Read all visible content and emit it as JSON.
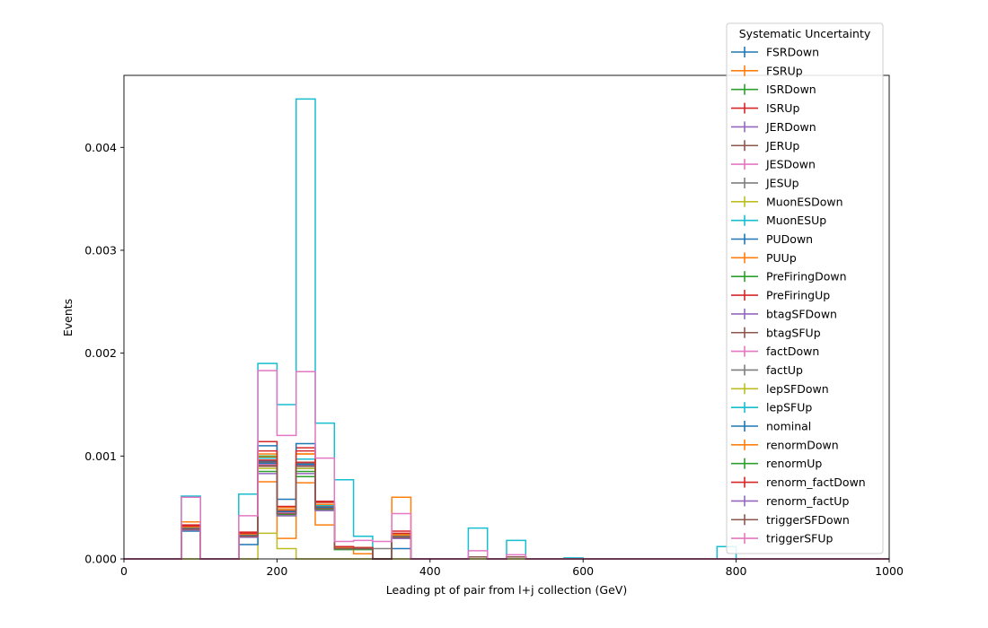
{
  "chart_data": {
    "type": "histogram",
    "xlabel": "Leading pt of pair from l+j collection (GeV)",
    "ylabel": "Events",
    "xlim": [
      0,
      1000
    ],
    "ylim": [
      0,
      0.0047
    ],
    "x_ticks": [
      "0",
      "200",
      "400",
      "600",
      "800",
      "1000"
    ],
    "y_ticks": [
      "0.000",
      "0.001",
      "0.002",
      "0.003",
      "0.004"
    ],
    "grid": false,
    "legend_title": "Systematic Uncertainty",
    "legend_position": "top-right",
    "bin_edges": [
      0,
      25,
      50,
      75,
      100,
      125,
      150,
      175,
      200,
      225,
      250,
      275,
      300,
      325,
      350,
      375,
      400,
      425,
      450,
      475,
      500,
      525,
      550,
      575,
      600,
      625,
      650,
      675,
      700,
      725,
      750,
      775,
      800,
      825,
      850,
      875,
      900,
      925,
      950,
      975,
      1000
    ],
    "series": [
      {
        "name": "FSRDown",
        "color": "#1f77b4",
        "values": [
          0,
          0,
          0,
          0.00028,
          0,
          0,
          0.00022,
          0.00095,
          0.00045,
          0.00088,
          0.0005,
          0.0001,
          0.0001,
          0,
          0.0002,
          0,
          0,
          0,
          2e-05,
          0,
          2e-05,
          0,
          0,
          0,
          0,
          0,
          0,
          0,
          0,
          0,
          0,
          0,
          0,
          0,
          0,
          0,
          0,
          0,
          0,
          0
        ]
      },
      {
        "name": "FSRUp",
        "color": "#ff7f0e",
        "values": [
          0,
          0,
          0,
          0.00036,
          0,
          0,
          0.00025,
          0.00075,
          0.0002,
          0.00074,
          0.00033,
          0.00012,
          5e-05,
          0,
          0.0006,
          0,
          0,
          0,
          2e-05,
          0,
          2e-05,
          0,
          0,
          0,
          0,
          0,
          0,
          0,
          0,
          0,
          0,
          0,
          0,
          0,
          0,
          0,
          0,
          0,
          0,
          0
        ]
      },
      {
        "name": "ISRDown",
        "color": "#2ca02c",
        "values": [
          0,
          0,
          0,
          0.0003,
          0,
          0,
          0.00022,
          0.001,
          0.00042,
          0.0008,
          0.00053,
          9e-05,
          9e-05,
          0,
          0.00022,
          0,
          0,
          0,
          2e-05,
          0,
          2e-05,
          0,
          0,
          0,
          0,
          0,
          0,
          0,
          0,
          0,
          0,
          0,
          0,
          0,
          0,
          0,
          0,
          0,
          0,
          0
        ]
      },
      {
        "name": "ISRUp",
        "color": "#d62728",
        "values": [
          0,
          0,
          0,
          0.00033,
          0,
          0,
          0.00026,
          0.00114,
          0.0005,
          0.00108,
          0.00056,
          0.00011,
          0.00011,
          0,
          0.00027,
          0,
          0,
          0,
          2e-05,
          0,
          2e-05,
          0,
          0,
          0,
          0,
          0,
          0,
          0,
          0,
          0,
          0,
          0,
          0,
          0,
          0,
          0,
          0,
          0,
          0,
          0
        ]
      },
      {
        "name": "JERDown",
        "color": "#9467bd",
        "values": [
          0,
          0,
          0,
          0.0003,
          0,
          0,
          0.00023,
          0.00092,
          0.00046,
          0.00093,
          0.0005,
          0.0001,
          0.0001,
          0,
          0.00022,
          0,
          0,
          0,
          2e-05,
          0,
          2e-05,
          0,
          0,
          0,
          0,
          0,
          0,
          0,
          0,
          0,
          0,
          0,
          0,
          0,
          0,
          0,
          0,
          0,
          0,
          0
        ]
      },
      {
        "name": "JERUp",
        "color": "#8c564b",
        "values": [
          0,
          0,
          0,
          0.00029,
          0,
          0,
          0.00022,
          0.00091,
          0.00045,
          0.0009,
          0.00049,
          0.0001,
          0.0001,
          0,
          0.00021,
          0,
          0,
          0,
          2e-05,
          0,
          2e-05,
          0,
          0,
          0,
          0,
          0,
          0,
          0,
          0,
          0,
          0,
          0,
          0,
          0,
          0,
          0,
          0,
          0,
          0,
          0
        ]
      },
      {
        "name": "JESDown",
        "color": "#e377c2",
        "values": [
          0,
          0,
          0,
          0.0003,
          0,
          0,
          0.00023,
          0.00093,
          0.00046,
          0.00094,
          0.0005,
          0.0001,
          0.0001,
          0,
          0.00022,
          0,
          0,
          0,
          2e-05,
          0,
          2e-05,
          0,
          0,
          0,
          0,
          0,
          0,
          0,
          0,
          0,
          0,
          0,
          0,
          0,
          0,
          0,
          0,
          0,
          0,
          0
        ]
      },
      {
        "name": "JESUp",
        "color": "#7f7f7f",
        "values": [
          0,
          0,
          0,
          0.00029,
          0,
          0,
          0.00022,
          0.00092,
          0.00044,
          0.0009,
          0.00049,
          0.0001,
          0.0001,
          0.0001,
          0.00021,
          0,
          0,
          0,
          2e-05,
          0,
          2e-05,
          0,
          0,
          0,
          0,
          0,
          0,
          0,
          0,
          0,
          0,
          0,
          0,
          0,
          0,
          0,
          0,
          0,
          0,
          0
        ]
      },
      {
        "name": "MuonESDown",
        "color": "#bcbd22",
        "values": [
          0,
          0,
          0,
          0,
          0,
          0,
          0,
          0.00025,
          0.0001,
          0,
          0,
          0,
          0,
          0,
          0,
          0,
          0,
          0,
          0,
          0,
          0,
          0,
          0,
          0,
          0,
          0,
          0,
          0,
          0,
          0,
          0,
          0,
          0,
          0,
          0,
          0,
          0,
          0,
          0,
          0
        ]
      },
      {
        "name": "MuonESUp",
        "color": "#17becf",
        "values": [
          0,
          0,
          0,
          0.00061,
          0,
          0,
          0.00063,
          0.0019,
          0.0015,
          0.00447,
          0.00132,
          0.00077,
          0.00022,
          0,
          0.00024,
          0,
          0,
          0,
          0.0003,
          0,
          0.00018,
          0,
          0,
          1e-05,
          0,
          0,
          0,
          0,
          0,
          0,
          0,
          0.00012,
          0,
          0,
          0,
          0,
          0,
          0,
          0,
          0
        ]
      },
      {
        "name": "PUDown",
        "color": "#1f77b4",
        "values": [
          0,
          0,
          0,
          0.00027,
          0,
          0,
          0.00014,
          0.0011,
          0.00058,
          0.00112,
          0.00055,
          0.0001,
          0.0001,
          0,
          0.0001,
          0,
          0,
          0,
          2e-05,
          0,
          2e-05,
          0,
          0,
          0,
          0,
          0,
          0,
          0,
          0,
          0,
          0,
          0,
          0,
          0,
          0,
          0,
          0,
          0,
          0,
          0
        ]
      },
      {
        "name": "PUUp",
        "color": "#ff7f0e",
        "values": [
          0,
          0,
          0,
          0.00031,
          0,
          0,
          0.00024,
          0.00099,
          0.0005,
          0.00102,
          0.00055,
          0.00011,
          0.00011,
          0,
          0.00024,
          0,
          0,
          0,
          2e-05,
          0,
          2e-05,
          0,
          0,
          0,
          0,
          0,
          0,
          0,
          0,
          0,
          0,
          0,
          0,
          0,
          0,
          0,
          0,
          0,
          0,
          0
        ]
      },
      {
        "name": "PreFiringDown",
        "color": "#2ca02c",
        "values": [
          0,
          0,
          0,
          0.00029,
          0,
          0,
          0.00023,
          0.00093,
          0.00045,
          0.00091,
          0.0005,
          0.0001,
          0.0001,
          0,
          0.00022,
          0,
          0,
          0,
          2e-05,
          0,
          2e-05,
          0,
          0,
          0,
          0,
          0,
          0,
          0,
          0,
          0,
          0,
          0,
          0,
          0,
          0,
          0,
          0,
          0,
          0,
          0
        ]
      },
      {
        "name": "PreFiringUp",
        "color": "#d62728",
        "values": [
          0,
          0,
          0,
          0.0003,
          0,
          0,
          0.00024,
          0.00096,
          0.00047,
          0.00094,
          0.00052,
          0.00011,
          0.00011,
          0,
          0.00023,
          0,
          0,
          0,
          2e-05,
          0,
          2e-05,
          0,
          0,
          0,
          0,
          0,
          0,
          0,
          0,
          0,
          0,
          0,
          0,
          0,
          0,
          0,
          0,
          0,
          0,
          0
        ]
      },
      {
        "name": "btagSFDown",
        "color": "#9467bd",
        "values": [
          0,
          0,
          0,
          0.00029,
          0,
          0,
          0.00022,
          0.00092,
          0.00045,
          0.00091,
          0.0005,
          0.0001,
          0.0001,
          0,
          0.00022,
          0,
          0,
          0,
          2e-05,
          0,
          2e-05,
          0,
          0,
          0,
          0,
          0,
          0,
          0,
          0,
          0,
          0,
          0,
          0,
          0,
          0,
          0,
          0,
          0,
          0,
          0
        ]
      },
      {
        "name": "btagSFUp",
        "color": "#8c564b",
        "values": [
          0,
          0,
          0,
          0.0003,
          0,
          0,
          0.00023,
          0.00094,
          0.00046,
          0.00093,
          0.00051,
          0.0001,
          0.0001,
          0,
          0.00022,
          0,
          0,
          0,
          2e-05,
          0,
          2e-05,
          0,
          0,
          0,
          0,
          0,
          0,
          0,
          0,
          0,
          0,
          0,
          0,
          0,
          0,
          0,
          0,
          0,
          0,
          0
        ]
      },
      {
        "name": "factDown",
        "color": "#e377c2",
        "values": [
          0,
          0,
          0,
          0.00029,
          0,
          0,
          0.00022,
          0.00092,
          0.00045,
          0.00092,
          0.0005,
          0.0001,
          0.0001,
          0,
          0.00022,
          0,
          0,
          0,
          2e-05,
          0,
          2e-05,
          0,
          0,
          0,
          0,
          0,
          0,
          0,
          0,
          0,
          0,
          0,
          0,
          0,
          0,
          0,
          0,
          0,
          0,
          0
        ]
      },
      {
        "name": "factUp",
        "color": "#7f7f7f",
        "values": [
          0,
          0,
          0,
          0.0003,
          0,
          0,
          0.00023,
          0.00093,
          0.00046,
          0.00092,
          0.0005,
          0.0001,
          0.0001,
          0,
          0.00022,
          0,
          0,
          0,
          2e-05,
          0,
          2e-05,
          0,
          0,
          0,
          0,
          0,
          0,
          0,
          0,
          0,
          0,
          0,
          0,
          0,
          0,
          0,
          0,
          0,
          0,
          0
        ]
      },
      {
        "name": "lepSFDown",
        "color": "#bcbd22",
        "values": [
          0,
          0,
          0,
          0.00028,
          0,
          0,
          0.00022,
          0.00088,
          0.00043,
          0.00088,
          0.00048,
          0.0001,
          0.0001,
          0,
          0.00021,
          0,
          0,
          0,
          2e-05,
          0,
          2e-05,
          0,
          0,
          0,
          0,
          0,
          0,
          0,
          0,
          0,
          0,
          0,
          0,
          0,
          0,
          0,
          0,
          0,
          0,
          0
        ]
      },
      {
        "name": "lepSFUp",
        "color": "#17becf",
        "values": [
          0,
          0,
          0,
          0.00031,
          0,
          0,
          0.00024,
          0.00098,
          0.00048,
          0.00097,
          0.00052,
          0.00011,
          0.00011,
          0,
          0.00023,
          0,
          0,
          0,
          2e-05,
          0,
          2e-05,
          0,
          0,
          0,
          0,
          0,
          0,
          0,
          0,
          0,
          0,
          0,
          0,
          0,
          0,
          0,
          0,
          0,
          0,
          0
        ]
      },
      {
        "name": "nominal",
        "color": "#1f77b4",
        "values": [
          0,
          0,
          0,
          0.0003,
          0,
          0,
          0.00023,
          0.00093,
          0.00046,
          0.00092,
          0.0005,
          0.0001,
          0.0001,
          0,
          0.00022,
          0,
          0,
          0,
          2e-05,
          0,
          2e-05,
          0,
          0,
          0,
          0,
          0,
          0,
          0,
          0,
          0,
          0,
          0,
          0,
          0,
          0,
          0,
          0,
          0,
          0,
          0
        ]
      },
      {
        "name": "renormDown",
        "color": "#ff7f0e",
        "values": [
          0,
          0,
          0,
          0.00031,
          0,
          0,
          0.00024,
          0.00102,
          0.00048,
          0.00102,
          0.00053,
          0.00011,
          0.00011,
          0,
          0.00023,
          0,
          0,
          0,
          2e-05,
          0,
          2e-05,
          0,
          0,
          0,
          0,
          0,
          0,
          0,
          0,
          0,
          0,
          0,
          0,
          0,
          0,
          0,
          0,
          0,
          0,
          0
        ]
      },
      {
        "name": "renormUp",
        "color": "#2ca02c",
        "values": [
          0,
          0,
          0,
          0.00029,
          0,
          0,
          0.00022,
          0.00085,
          0.00043,
          0.00085,
          0.00048,
          0.0001,
          0.0001,
          0,
          0.00021,
          0,
          0,
          0,
          2e-05,
          0,
          2e-05,
          0,
          0,
          0,
          0,
          0,
          0,
          0,
          0,
          0,
          0,
          0,
          0,
          0,
          0,
          0,
          0,
          0,
          0,
          0
        ]
      },
      {
        "name": "renorm_factDown",
        "color": "#d62728",
        "values": [
          0,
          0,
          0,
          0.00032,
          0,
          0,
          0.00025,
          0.00105,
          0.00051,
          0.00105,
          0.00055,
          0.00012,
          0.00011,
          0,
          0.00025,
          0,
          0,
          0,
          2e-05,
          0,
          2e-05,
          0,
          0,
          0,
          0,
          0,
          0,
          0,
          0,
          0,
          0,
          0,
          0,
          0,
          0,
          0,
          0,
          0,
          0,
          0
        ]
      },
      {
        "name": "renorm_factUp",
        "color": "#9467bd",
        "values": [
          0,
          0,
          0,
          0.00028,
          0,
          0,
          0.00021,
          0.00083,
          0.00042,
          0.00083,
          0.00047,
          0.0001,
          0.0001,
          0,
          0.0002,
          0,
          0,
          0,
          2e-05,
          0,
          2e-05,
          0,
          0,
          0,
          0,
          0,
          0,
          0,
          0,
          0,
          0,
          0,
          0,
          0,
          0,
          0,
          0,
          0,
          0,
          0
        ]
      },
      {
        "name": "triggerSFDown",
        "color": "#8c564b",
        "values": [
          0,
          0,
          0,
          0.00029,
          0,
          0,
          0.00022,
          0.0009,
          0.00044,
          0.0009,
          0.00049,
          0.0001,
          0.0001,
          0,
          0.00021,
          0,
          0,
          0,
          2e-05,
          0,
          2e-05,
          0,
          0,
          0,
          0,
          0,
          0,
          0,
          0,
          0,
          0,
          0,
          0,
          0,
          0,
          0,
          0,
          0,
          0,
          0
        ]
      },
      {
        "name": "triggerSFUp",
        "color": "#e377c2",
        "values": [
          0,
          0,
          0,
          0.0006,
          0,
          0,
          0.00042,
          0.00183,
          0.0012,
          0.00182,
          0.00098,
          0.00017,
          0.00018,
          0.00017,
          0.00044,
          0,
          0,
          0,
          8e-05,
          0,
          4e-05,
          0,
          0,
          0,
          0,
          0,
          0,
          0,
          0,
          0,
          0,
          0,
          0,
          0,
          0,
          0,
          0,
          0,
          0,
          0
        ]
      }
    ]
  }
}
